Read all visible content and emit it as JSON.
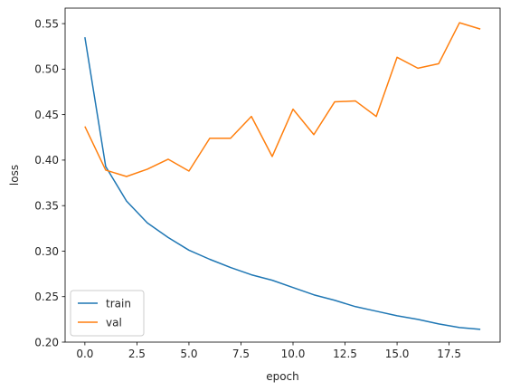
{
  "chart_data": {
    "type": "line",
    "xlabel": "epoch",
    "ylabel": "loss",
    "xlim": [
      -0.95,
      19.95
    ],
    "ylim": [
      0.2,
      0.567
    ],
    "xticks": [
      0,
      2.5,
      5,
      7.5,
      10,
      12.5,
      15,
      17.5
    ],
    "xtick_labels": [
      "0.0",
      "2.5",
      "5.0",
      "7.5",
      "10.0",
      "12.5",
      "15.0",
      "17.5"
    ],
    "yticks": [
      0.2,
      0.25,
      0.3,
      0.35,
      0.4,
      0.45,
      0.5,
      0.55
    ],
    "ytick_labels": [
      "0.20",
      "0.25",
      "0.30",
      "0.35",
      "0.40",
      "0.45",
      "0.50",
      "0.55"
    ],
    "grid": false,
    "legend_position": "lower-left",
    "x": [
      0,
      1,
      2,
      3,
      4,
      5,
      6,
      7,
      8,
      9,
      10,
      11,
      12,
      13,
      14,
      15,
      16,
      17,
      18,
      19
    ],
    "series": [
      {
        "name": "train",
        "color": "#1f77b4",
        "values": [
          0.535,
          0.393,
          0.355,
          0.331,
          0.315,
          0.301,
          0.291,
          0.282,
          0.274,
          0.268,
          0.26,
          0.252,
          0.246,
          0.239,
          0.234,
          0.229,
          0.225,
          0.22,
          0.216,
          0.214
        ]
      },
      {
        "name": "val",
        "color": "#ff7f0e",
        "values": [
          0.437,
          0.389,
          0.382,
          0.39,
          0.401,
          0.388,
          0.424,
          0.424,
          0.448,
          0.404,
          0.456,
          0.428,
          0.464,
          0.465,
          0.448,
          0.513,
          0.501,
          0.506,
          0.551,
          0.544
        ]
      }
    ]
  }
}
